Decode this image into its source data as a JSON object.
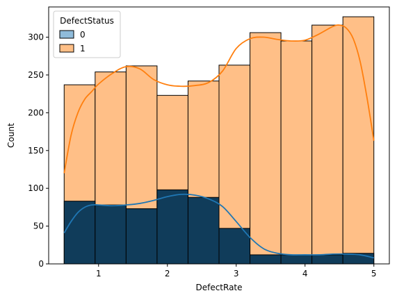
{
  "chart_data": {
    "type": "histogram",
    "xlabel": "DefectRate",
    "ylabel": "Count",
    "xlim": [
      0.275,
      5.225
    ],
    "ylim": [
      0,
      340
    ],
    "x_ticks": [
      1,
      2,
      3,
      4,
      5
    ],
    "x_tick_labels": [
      "1",
      "2",
      "3",
      "4",
      "5"
    ],
    "y_ticks": [
      0,
      50,
      100,
      150,
      200,
      250,
      300
    ],
    "y_tick_labels": [
      "0",
      "50",
      "100",
      "150",
      "200",
      "250",
      "300"
    ],
    "bin_edges": [
      0.5,
      0.95,
      1.4,
      1.85,
      2.3,
      2.75,
      3.2,
      3.65,
      4.1,
      4.55,
      5.0
    ],
    "stacking": "layered",
    "legend": {
      "title": "DefectStatus",
      "placement": "upper-left",
      "entries": [
        "0",
        "1"
      ]
    },
    "series": [
      {
        "name": "0",
        "color": "#1f77b4",
        "counts": [
          83,
          78,
          73,
          98,
          88,
          47,
          12,
          12,
          12,
          14
        ],
        "kde_x": [
          0.5,
          0.6,
          0.7,
          0.8,
          0.9,
          1.0,
          1.2,
          1.4,
          1.6,
          1.8,
          2.0,
          2.2,
          2.4,
          2.6,
          2.8,
          3.0,
          3.2,
          3.4,
          3.6,
          3.8,
          4.0,
          4.2,
          4.4,
          4.6,
          4.8,
          5.0
        ],
        "kde_y": [
          41,
          56,
          68,
          75,
          78,
          78,
          77,
          78,
          80,
          84,
          89,
          92,
          91,
          86,
          76,
          56,
          35,
          20,
          14,
          12,
          12,
          12,
          13,
          13,
          12,
          8
        ]
      },
      {
        "name": "1",
        "color": "#ff7f0e",
        "counts": [
          237,
          254,
          262,
          223,
          242,
          263,
          306,
          295,
          316,
          327
        ],
        "kde_x": [
          0.5,
          0.6,
          0.7,
          0.8,
          0.9,
          1.0,
          1.2,
          1.4,
          1.6,
          1.8,
          2.0,
          2.2,
          2.4,
          2.6,
          2.8,
          3.0,
          3.2,
          3.4,
          3.6,
          3.8,
          4.0,
          4.2,
          4.4,
          4.5,
          4.6,
          4.7,
          4.8,
          4.9,
          5.0
        ],
        "kde_y": [
          120,
          170,
          200,
          218,
          228,
          238,
          252,
          261,
          258,
          244,
          237,
          235,
          236,
          240,
          255,
          285,
          298,
          300,
          297,
          295,
          296,
          304,
          314,
          316,
          312,
          298,
          268,
          220,
          163
        ]
      }
    ]
  }
}
